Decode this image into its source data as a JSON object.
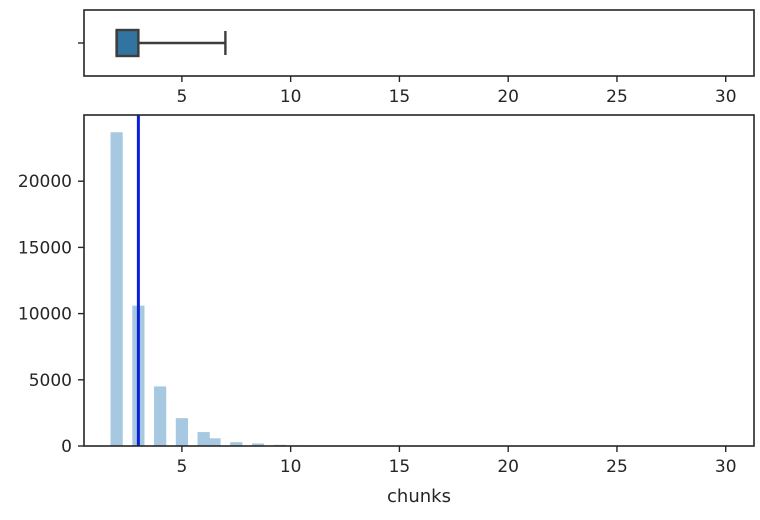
{
  "chart_data": [
    {
      "type": "boxplot",
      "orientation": "horizontal",
      "xlim": [
        0.5,
        31.3
      ],
      "x_ticks": [
        5,
        10,
        15,
        20,
        25,
        30
      ],
      "box": {
        "whisker_low": 2,
        "q1": 2,
        "median": 2,
        "q3": 3,
        "whisker_high": 7
      },
      "colors": {
        "box_fill": "#3274a1",
        "box_edge": "#3d3d3d"
      }
    },
    {
      "type": "histogram",
      "xlabel": "chunks",
      "ylabel": "",
      "xlim": [
        0.5,
        31.3
      ],
      "ylim": [
        0,
        25000
      ],
      "x_ticks": [
        5,
        10,
        15,
        20,
        25,
        30
      ],
      "y_ticks": [
        0,
        5000,
        10000,
        15000,
        20000
      ],
      "bin_width": 0.56,
      "bins": [
        {
          "x": 2,
          "count": 23700
        },
        {
          "x": 3,
          "count": 10600
        },
        {
          "x": 4,
          "count": 4500
        },
        {
          "x": 5,
          "count": 2100
        },
        {
          "x": 6,
          "count": 1050
        },
        {
          "x": 6.5,
          "count": 580
        },
        {
          "x": 7.5,
          "count": 290
        },
        {
          "x": 8.5,
          "count": 190
        },
        {
          "x": 9.5,
          "count": 90
        },
        {
          "x": 10.5,
          "count": 50
        },
        {
          "x": 11.5,
          "count": 30
        },
        {
          "x": 12.5,
          "count": 20
        },
        {
          "x": 13.5,
          "count": 12
        },
        {
          "x": 14.5,
          "count": 8
        },
        {
          "x": 16,
          "count": 5
        },
        {
          "x": 18,
          "count": 3
        },
        {
          "x": 30,
          "count": 1
        }
      ],
      "mean_line": 3.0,
      "colors": {
        "bar": "#a6c8e1",
        "mean_line": "#0a1fd6"
      }
    }
  ]
}
